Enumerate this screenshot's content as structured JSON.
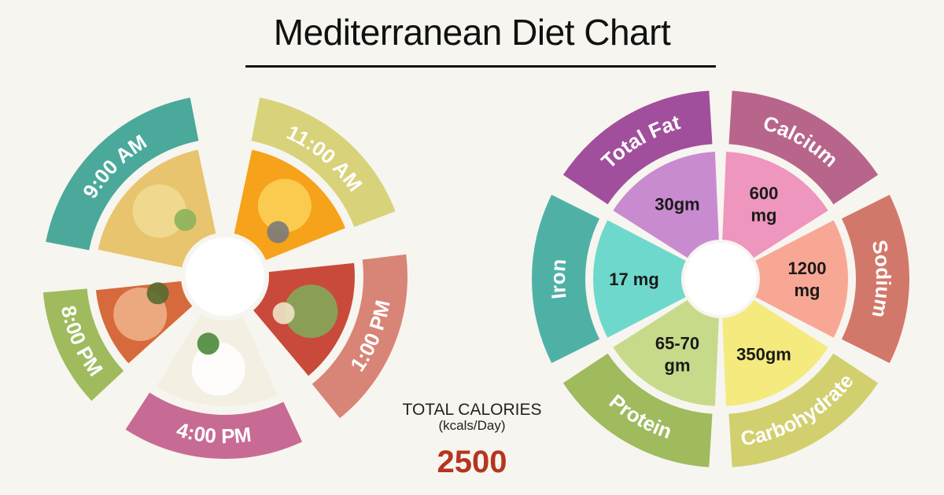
{
  "title": "Mediterranean Diet Chart",
  "meal_schedule": {
    "items": [
      {
        "time": "9:00 AM",
        "food_icon": "frittata-icon",
        "color": "#4aa99b"
      },
      {
        "time": "11:00 AM",
        "food_icon": "orange-juice-icon",
        "color": "#d8d27a"
      },
      {
        "time": "1:00 PM",
        "food_icon": "salad-bowl-icon",
        "color": "#d88477"
      },
      {
        "time": "4:00 PM",
        "food_icon": "tofu-cheese-icon",
        "color": "#c76b95"
      },
      {
        "time": "8:00 PM",
        "food_icon": "salmon-icon",
        "color": "#9fbb5d"
      }
    ]
  },
  "calories": {
    "label": "TOTAL CALORIES",
    "unit": "(kcals/Day)",
    "value": "2500"
  },
  "nutrients": {
    "items": [
      {
        "name": "Total Fat",
        "amount_line1": "30gm",
        "amount_line2": "",
        "ring_color": "#a14f9c",
        "fill_color": "#c98bd0"
      },
      {
        "name": "Calcium",
        "amount_line1": "600",
        "amount_line2": "mg",
        "ring_color": "#b8658b",
        "fill_color": "#ee96bd"
      },
      {
        "name": "Sodium",
        "amount_line1": "1200",
        "amount_line2": "mg",
        "ring_color": "#d2786a",
        "fill_color": "#f9a795"
      },
      {
        "name": "Carbohydrate",
        "amount_line1": "350gm",
        "amount_line2": "",
        "ring_color": "#d2cf6f",
        "fill_color": "#f4ea7e"
      },
      {
        "name": "Protein",
        "amount_line1": "65-70",
        "amount_line2": "gm",
        "ring_color": "#9fbb5d",
        "fill_color": "#c7da8a"
      },
      {
        "name": "Iron",
        "amount_line1": "17 mg",
        "amount_line2": "",
        "ring_color": "#4fb1a6",
        "fill_color": "#6fd8cc"
      }
    ]
  }
}
